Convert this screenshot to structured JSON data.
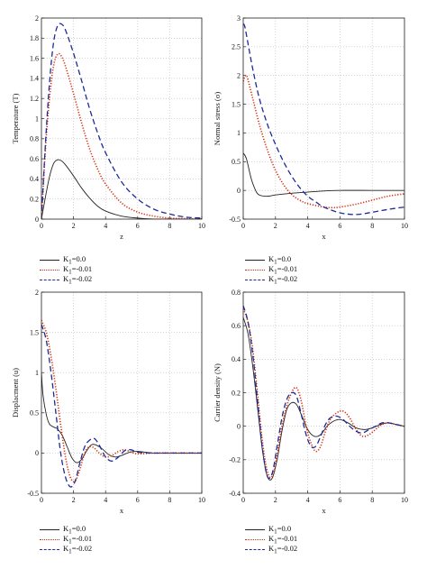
{
  "chart_data": [
    {
      "type": "line",
      "xlabel": "z",
      "ylabel": "Temperature (T)",
      "xlim": [
        0,
        10
      ],
      "ylim": [
        0,
        2
      ],
      "xticks": [
        "0",
        "2",
        "4",
        "6",
        "8",
        "10"
      ],
      "yticks": [
        "0",
        "0.2",
        "0.4",
        "0.6",
        "0.8",
        "1",
        "1.2",
        "1.4",
        "1.6",
        "1.8",
        "2"
      ],
      "grid": true,
      "legend_position": "below",
      "series": [
        {
          "name": "K1=0.0",
          "style": "solid",
          "color": "#222222",
          "x": [
            0,
            0.25,
            0.5,
            0.75,
            1,
            1.25,
            1.5,
            2,
            2.5,
            3,
            3.5,
            4,
            5,
            6,
            7,
            8,
            10
          ],
          "y": [
            0,
            0.22,
            0.42,
            0.55,
            0.59,
            0.58,
            0.54,
            0.43,
            0.31,
            0.21,
            0.13,
            0.08,
            0.03,
            0.01,
            0,
            0,
            0
          ]
        },
        {
          "name": "K1=-0.01",
          "style": "dotted",
          "color": "#d62a0b",
          "x": [
            0,
            0.25,
            0.5,
            0.75,
            1,
            1.25,
            1.5,
            2,
            2.5,
            3,
            3.5,
            4,
            5,
            6,
            7,
            8,
            9,
            10
          ],
          "y": [
            0,
            0.7,
            1.2,
            1.52,
            1.64,
            1.62,
            1.52,
            1.25,
            0.96,
            0.7,
            0.5,
            0.35,
            0.16,
            0.07,
            0.03,
            0.01,
            0.005,
            0
          ]
        },
        {
          "name": "K1=-0.02",
          "style": "dashed",
          "color": "#1f2a96",
          "x": [
            0,
            0.25,
            0.5,
            0.75,
            1,
            1.25,
            1.5,
            2,
            2.5,
            3,
            3.5,
            4,
            5,
            6,
            7,
            8,
            9,
            10
          ],
          "y": [
            0,
            0.75,
            1.35,
            1.75,
            1.92,
            1.94,
            1.88,
            1.65,
            1.38,
            1.1,
            0.86,
            0.66,
            0.37,
            0.2,
            0.1,
            0.05,
            0.02,
            0.01
          ]
        }
      ]
    },
    {
      "type": "line",
      "xlabel": "x",
      "ylabel": "Normal stress (σ)",
      "xlim": [
        0,
        10
      ],
      "ylim": [
        -0.5,
        3
      ],
      "xticks": [
        "0",
        "2",
        "4",
        "6",
        "8",
        "10"
      ],
      "yticks": [
        "-0.5",
        "0",
        "0.5",
        "1",
        "1.5",
        "2",
        "2.5",
        "3"
      ],
      "grid": true,
      "legend_position": "below",
      "series": [
        {
          "name": "K1=0.0",
          "style": "solid",
          "color": "#222222",
          "x": [
            0,
            0.2,
            0.5,
            0.8,
            1,
            1.3,
            1.6,
            2,
            3,
            4,
            5,
            6,
            8,
            10
          ],
          "y": [
            0.65,
            0.55,
            0.2,
            -0.02,
            -0.08,
            -0.1,
            -0.1,
            -0.08,
            -0.05,
            -0.03,
            -0.01,
            0,
            0,
            0
          ]
        },
        {
          "name": "K1=-0.01",
          "style": "dotted",
          "color": "#d62a0b",
          "x": [
            0,
            0.2,
            0.5,
            1,
            1.5,
            2,
            2.5,
            3,
            3.5,
            4,
            5,
            5.5,
            6,
            7,
            8,
            9,
            10
          ],
          "y": [
            1.9,
            2.0,
            1.7,
            1.15,
            0.7,
            0.35,
            0.1,
            -0.07,
            -0.17,
            -0.23,
            -0.29,
            -0.3,
            -0.29,
            -0.24,
            -0.17,
            -0.1,
            -0.06
          ]
        },
        {
          "name": "K1=-0.02",
          "style": "dashed",
          "color": "#1f2a96",
          "x": [
            0,
            0.1,
            0.3,
            0.6,
            1,
            1.5,
            2,
            2.5,
            3,
            3.5,
            4,
            4.5,
            5,
            6,
            7,
            8,
            9,
            10
          ],
          "y": [
            2.9,
            2.85,
            2.55,
            2.1,
            1.6,
            1.15,
            0.8,
            0.5,
            0.25,
            0.05,
            -0.1,
            -0.2,
            -0.29,
            -0.39,
            -0.42,
            -0.38,
            -0.33,
            -0.29
          ]
        }
      ]
    },
    {
      "type": "line",
      "xlabel": "x",
      "ylabel": "Displacment (u)",
      "xlim": [
        0,
        10
      ],
      "ylim": [
        -0.5,
        2
      ],
      "xticks": [
        "0",
        "2",
        "4",
        "6",
        "8",
        "10"
      ],
      "yticks": [
        "-0.5",
        "0",
        "0.5",
        "1",
        "1.5",
        "2"
      ],
      "grid": true,
      "legend_position": "below",
      "series": [
        {
          "name": "K1=0.0",
          "style": "solid",
          "color": "#222222",
          "x": [
            0,
            0.1,
            0.3,
            0.5,
            0.8,
            1,
            1.3,
            1.6,
            1.9,
            2.2,
            2.5,
            2.8,
            3.1,
            3.4,
            3.8,
            4.2,
            4.6,
            5,
            5.5,
            6,
            7,
            8,
            10
          ],
          "y": [
            1.0,
            0.72,
            0.48,
            0.36,
            0.32,
            0.3,
            0.22,
            0.08,
            -0.06,
            -0.12,
            -0.08,
            0.02,
            0.1,
            0.1,
            0.05,
            -0.02,
            -0.05,
            -0.03,
            0.01,
            0.02,
            0,
            0,
            0
          ]
        },
        {
          "name": "K1=-0.01",
          "style": "dotted",
          "color": "#d62a0b",
          "x": [
            0,
            0.3,
            0.6,
            0.9,
            1.2,
            1.5,
            1.8,
            2.1,
            2.4,
            2.7,
            3,
            3.3,
            3.6,
            4,
            4.4,
            4.8,
            5.2,
            5.6,
            6,
            7,
            8,
            10
          ],
          "y": [
            1.65,
            1.5,
            1.2,
            0.8,
            0.35,
            -0.05,
            -0.3,
            -0.35,
            -0.2,
            0,
            0.08,
            0.06,
            0,
            -0.05,
            -0.03,
            0.02,
            0.04,
            0.01,
            -0.01,
            0,
            0,
            0
          ]
        },
        {
          "name": "K1=-0.02",
          "style": "dashed",
          "color": "#1f2a96",
          "x": [
            0,
            0.3,
            0.6,
            0.9,
            1.2,
            1.5,
            1.8,
            2.1,
            2.4,
            2.7,
            3,
            3.3,
            3.6,
            4,
            4.4,
            4.8,
            5.2,
            5.6,
            6,
            7,
            8,
            10
          ],
          "y": [
            1.6,
            1.4,
            1.0,
            0.5,
            0.0,
            -0.3,
            -0.42,
            -0.35,
            -0.12,
            0.08,
            0.16,
            0.18,
            0.1,
            -0.05,
            -0.1,
            -0.05,
            0.03,
            0.04,
            0.01,
            0,
            0,
            0
          ]
        }
      ]
    },
    {
      "type": "line",
      "xlabel": "x",
      "ylabel": "Carrier density (N)",
      "xlim": [
        0,
        10
      ],
      "ylim": [
        -0.4,
        0.8
      ],
      "xticks": [
        "0",
        "2",
        "4",
        "6",
        "8",
        "10"
      ],
      "yticks": [
        "-0.4",
        "-0.2",
        "0",
        "0.2",
        "0.4",
        "0.6",
        "0.8"
      ],
      "grid": true,
      "legend_position": "below",
      "series": [
        {
          "name": "K1=0.0",
          "style": "solid",
          "color": "#222222",
          "x": [
            0,
            0.3,
            0.6,
            0.9,
            1.2,
            1.5,
            1.8,
            2.1,
            2.4,
            2.7,
            3,
            3.3,
            3.6,
            4,
            4.4,
            4.8,
            5.2,
            5.6,
            6,
            6.5,
            7,
            7.5,
            8,
            8.5,
            9,
            9.5,
            10
          ],
          "y": [
            0.65,
            0.55,
            0.35,
            0.1,
            -0.15,
            -0.3,
            -0.31,
            -0.2,
            -0.03,
            0.1,
            0.14,
            0.13,
            0.07,
            -0.02,
            -0.06,
            -0.05,
            0,
            0.03,
            0.04,
            0.02,
            -0.01,
            -0.02,
            -0.01,
            0.01,
            0.02,
            0.01,
            0
          ]
        },
        {
          "name": "K1=-0.01",
          "style": "dotted",
          "color": "#d62a0b",
          "x": [
            0,
            0.3,
            0.6,
            0.9,
            1.2,
            1.5,
            1.8,
            2.1,
            2.4,
            2.7,
            3,
            3.3,
            3.6,
            3.9,
            4.2,
            4.5,
            4.8,
            5.1,
            5.4,
            5.8,
            6.2,
            6.6,
            7,
            7.4,
            7.8,
            8.2,
            8.6,
            9,
            9.5,
            10
          ],
          "y": [
            0.7,
            0.62,
            0.45,
            0.18,
            -0.1,
            -0.27,
            -0.3,
            -0.17,
            0.0,
            0.12,
            0.2,
            0.23,
            0.15,
            0.0,
            -0.1,
            -0.15,
            -0.12,
            -0.03,
            0.04,
            0.08,
            0.09,
            0.05,
            -0.02,
            -0.06,
            -0.05,
            -0.02,
            0.01,
            0.02,
            0.01,
            0.0
          ]
        },
        {
          "name": "K1=-0.02",
          "style": "dashed",
          "color": "#1f2a96",
          "x": [
            0,
            0.3,
            0.6,
            0.9,
            1.2,
            1.5,
            1.8,
            2.1,
            2.4,
            2.7,
            3,
            3.3,
            3.6,
            3.9,
            4.2,
            4.5,
            4.8,
            5.1,
            5.4,
            5.8,
            6.2,
            6.6,
            7,
            7.4,
            7.8,
            8.2,
            8.6,
            9,
            9.5,
            10
          ],
          "y": [
            0.72,
            0.62,
            0.42,
            0.14,
            -0.14,
            -0.3,
            -0.28,
            -0.12,
            0.05,
            0.16,
            0.2,
            0.18,
            0.07,
            -0.05,
            -0.12,
            -0.12,
            -0.06,
            0.01,
            0.05,
            0.06,
            0.04,
            0.0,
            -0.03,
            -0.04,
            -0.02,
            0.0,
            0.02,
            0.02,
            0.01,
            0.0
          ]
        }
      ]
    }
  ],
  "legend": {
    "k": "K",
    "sub": "1",
    "items": [
      "=0.0",
      "=-0.01",
      "=-0.02"
    ]
  }
}
